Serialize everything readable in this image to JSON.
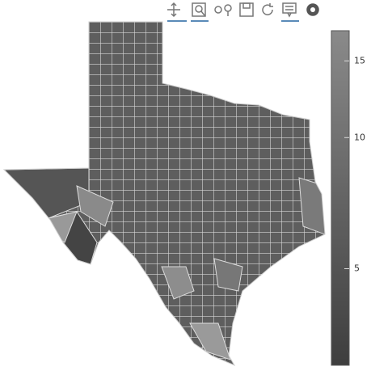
{
  "colorbar": {
    "range": [
      3,
      17.6
    ],
    "scale": "log",
    "ticks": [
      5,
      10,
      15
    ]
  }
}
